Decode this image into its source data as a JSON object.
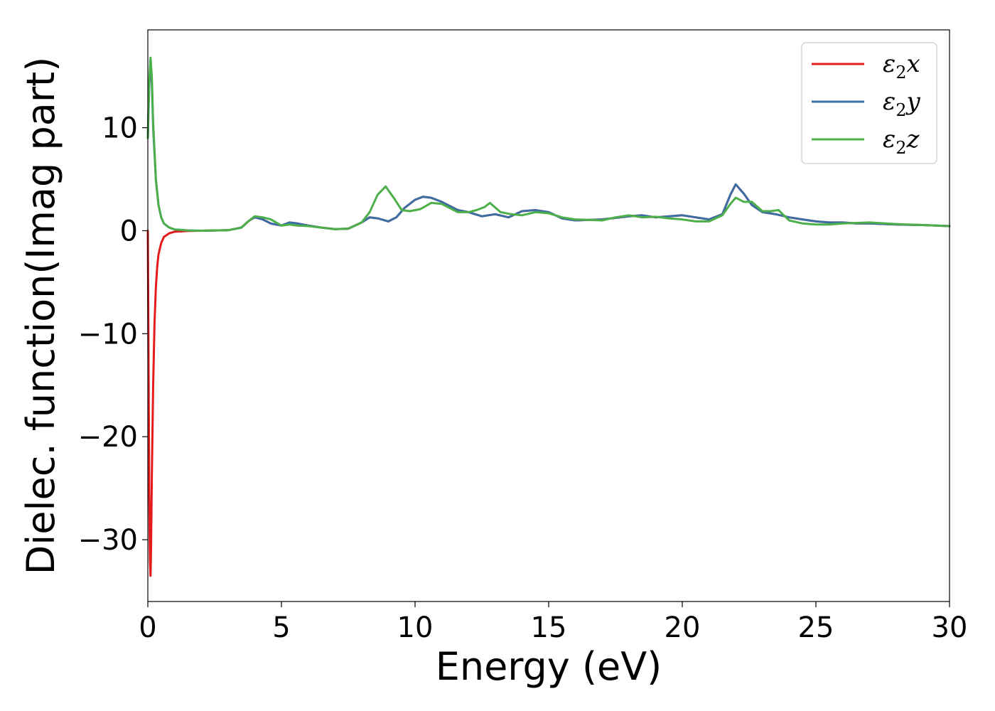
{
  "chart_data": {
    "type": "line",
    "xlabel": "Energy (eV)",
    "ylabel": "Dielec. function(Imag part)",
    "xlim": [
      0,
      30
    ],
    "ylim": [
      -36,
      19.5
    ],
    "xticks": [
      0,
      5,
      10,
      15,
      20,
      25,
      30
    ],
    "xtick_labels": [
      "0",
      "5",
      "10",
      "15",
      "20",
      "25",
      "30"
    ],
    "yticks": [
      -30,
      -20,
      -10,
      0,
      10
    ],
    "ytick_labels": [
      "−30",
      "−20",
      "−10",
      "0",
      "10"
    ],
    "grid": false,
    "legend_position": "top-right",
    "series": [
      {
        "legend": {
          "symbol": "ε",
          "sub": "2",
          "axis": "x"
        },
        "color": "#e41a1c",
        "x": [
          0.0,
          0.02,
          0.05,
          0.08,
          0.1,
          0.12,
          0.15,
          0.2,
          0.25,
          0.3,
          0.35,
          0.4,
          0.5,
          0.6,
          0.8,
          1.0,
          1.5,
          2.0,
          3.0,
          3.5,
          3.8,
          4.0,
          4.3,
          4.6,
          5.0,
          5.3,
          5.6,
          6.0,
          6.5,
          7.0,
          7.5,
          8.0,
          8.3,
          8.6,
          9.0,
          9.3,
          9.6,
          10.0,
          10.3,
          10.6,
          11.0,
          11.3,
          11.6,
          12.0,
          12.5,
          13.0,
          13.5,
          14.0,
          14.5,
          15.0,
          15.5,
          16.0,
          17.0,
          18.0,
          18.5,
          19.0,
          19.5,
          20.0,
          20.5,
          21.0,
          21.5,
          21.8,
          22.0,
          22.3,
          22.6,
          23.0,
          23.5,
          24.0,
          24.5,
          25.0,
          25.5,
          26.0,
          26.5,
          27.0,
          28.0,
          29.0,
          30.0
        ],
        "y": [
          0.0,
          -10.0,
          -25.0,
          -32.0,
          -33.5,
          -31.0,
          -24.0,
          -15.0,
          -9.0,
          -5.5,
          -3.5,
          -2.3,
          -1.2,
          -0.6,
          -0.25,
          -0.1,
          -0.03,
          0.0,
          0.05,
          0.3,
          1.0,
          1.3,
          1.1,
          0.7,
          0.5,
          0.8,
          0.7,
          0.5,
          0.3,
          0.15,
          0.2,
          0.8,
          1.3,
          1.2,
          0.9,
          1.3,
          2.2,
          3.0,
          3.3,
          3.2,
          2.8,
          2.4,
          2.0,
          1.8,
          1.4,
          1.6,
          1.3,
          1.9,
          2.0,
          1.8,
          1.2,
          1.0,
          1.1,
          1.4,
          1.5,
          1.3,
          1.4,
          1.5,
          1.3,
          1.1,
          1.6,
          3.5,
          4.5,
          3.6,
          2.5,
          1.8,
          1.6,
          1.3,
          1.1,
          0.9,
          0.8,
          0.8,
          0.7,
          0.7,
          0.6,
          0.55,
          0.45
        ]
      },
      {
        "legend": {
          "symbol": "ε",
          "sub": "2",
          "axis": "y"
        },
        "color": "#3a6ea5",
        "x": [
          0.0,
          0.05,
          0.1,
          0.15,
          0.2,
          0.3,
          0.4,
          0.5,
          0.6,
          0.8,
          1.0,
          1.5,
          2.0,
          3.0,
          3.5,
          3.8,
          4.0,
          4.3,
          4.6,
          5.0,
          5.3,
          5.6,
          6.0,
          6.5,
          7.0,
          7.5,
          8.0,
          8.3,
          8.6,
          9.0,
          9.3,
          9.6,
          10.0,
          10.3,
          10.6,
          11.0,
          11.3,
          11.6,
          12.0,
          12.5,
          13.0,
          13.5,
          14.0,
          14.5,
          15.0,
          15.5,
          16.0,
          17.0,
          18.0,
          18.5,
          19.0,
          19.5,
          20.0,
          20.5,
          21.0,
          21.5,
          21.8,
          22.0,
          22.3,
          22.6,
          23.0,
          23.5,
          24.0,
          24.5,
          25.0,
          25.5,
          26.0,
          26.5,
          27.0,
          28.0,
          29.0,
          30.0
        ],
        "y": [
          9.0,
          14.0,
          16.2,
          14.5,
          10.0,
          5.0,
          2.5,
          1.3,
          0.7,
          0.3,
          0.12,
          0.03,
          0.0,
          0.05,
          0.3,
          1.0,
          1.3,
          1.1,
          0.7,
          0.5,
          0.8,
          0.7,
          0.5,
          0.3,
          0.15,
          0.2,
          0.8,
          1.3,
          1.2,
          0.9,
          1.3,
          2.2,
          3.0,
          3.3,
          3.2,
          2.8,
          2.4,
          2.0,
          1.8,
          1.4,
          1.6,
          1.3,
          1.9,
          2.0,
          1.8,
          1.2,
          1.0,
          1.1,
          1.4,
          1.5,
          1.3,
          1.4,
          1.5,
          1.3,
          1.1,
          1.6,
          3.5,
          4.5,
          3.6,
          2.5,
          1.8,
          1.6,
          1.3,
          1.1,
          0.9,
          0.8,
          0.8,
          0.7,
          0.7,
          0.6,
          0.55,
          0.45
        ]
      },
      {
        "legend": {
          "symbol": "ε",
          "sub": "2",
          "axis": "z"
        },
        "color": "#4daf4a",
        "x": [
          0.0,
          0.05,
          0.1,
          0.15,
          0.2,
          0.3,
          0.4,
          0.5,
          0.6,
          0.8,
          1.0,
          1.5,
          2.0,
          3.0,
          3.5,
          3.8,
          4.0,
          4.3,
          4.6,
          5.0,
          5.3,
          5.6,
          6.0,
          6.5,
          7.0,
          7.5,
          8.0,
          8.3,
          8.6,
          8.9,
          9.2,
          9.5,
          9.8,
          10.2,
          10.6,
          11.0,
          11.3,
          11.6,
          12.0,
          12.3,
          12.6,
          12.8,
          13.2,
          13.6,
          14.0,
          14.5,
          15.0,
          15.5,
          16.0,
          16.5,
          17.0,
          17.5,
          18.0,
          18.5,
          19.0,
          19.5,
          20.0,
          20.5,
          21.0,
          21.5,
          21.8,
          22.0,
          22.3,
          22.6,
          23.0,
          23.3,
          23.6,
          24.0,
          24.5,
          25.0,
          25.5,
          26.0,
          27.0,
          28.0,
          29.0,
          30.0
        ],
        "y": [
          9.0,
          14.5,
          16.8,
          15.0,
          10.5,
          5.0,
          2.5,
          1.3,
          0.7,
          0.3,
          0.12,
          0.03,
          0.0,
          0.05,
          0.3,
          1.0,
          1.4,
          1.3,
          1.1,
          0.5,
          0.6,
          0.5,
          0.45,
          0.3,
          0.15,
          0.2,
          0.8,
          1.8,
          3.5,
          4.3,
          3.2,
          2.0,
          1.9,
          2.1,
          2.7,
          2.6,
          2.2,
          1.8,
          1.8,
          2.0,
          2.3,
          2.7,
          1.8,
          1.6,
          1.5,
          1.8,
          1.7,
          1.3,
          1.1,
          1.05,
          1.0,
          1.3,
          1.5,
          1.3,
          1.35,
          1.2,
          1.1,
          0.9,
          0.9,
          1.5,
          2.6,
          3.2,
          2.8,
          2.8,
          1.9,
          1.9,
          2.0,
          1.0,
          0.7,
          0.6,
          0.6,
          0.7,
          0.8,
          0.65,
          0.55,
          0.45
        ]
      }
    ]
  }
}
